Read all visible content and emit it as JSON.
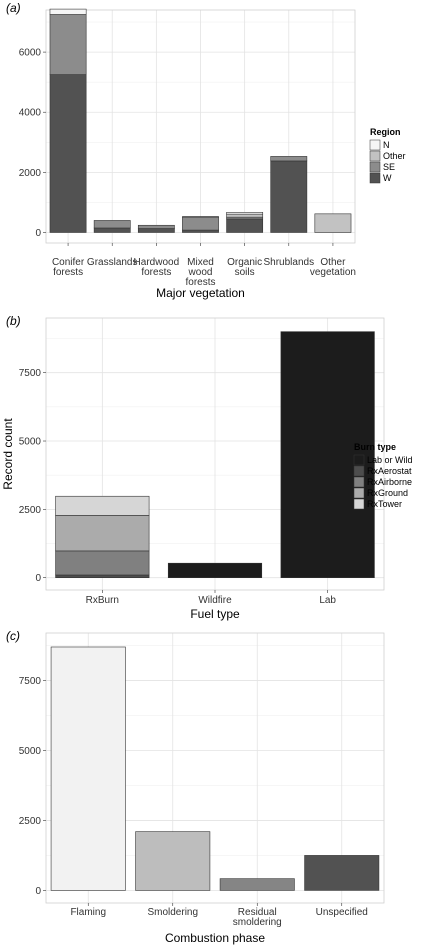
{
  "chart_data": [
    {
      "panel_label": "(a)",
      "type": "bar",
      "stacked": true,
      "xlabel": "Major vegetation",
      "ylabel": "",
      "categories": [
        "Conifer\nforests",
        "Grasslands",
        "Hardwood\nforests",
        "Mixed\nwood\nforests",
        "Organic\nsoils",
        "Shrublands",
        "Other\nvegetation"
      ],
      "ylim": [
        -350,
        7400
      ],
      "yticks": [
        0,
        2000,
        4000,
        6000
      ],
      "grid": true,
      "legend": {
        "title": "Region",
        "placement": "right"
      },
      "series": [
        {
          "name": "W",
          "color": "#525252",
          "values": [
            5250,
            150,
            130,
            80,
            450,
            2380,
            0
          ]
        },
        {
          "name": "SE",
          "color": "#8c8c8c",
          "values": [
            2000,
            250,
            110,
            430,
            60,
            150,
            0
          ]
        },
        {
          "name": "Other",
          "color": "#c2c2c2",
          "values": [
            0,
            0,
            0,
            20,
            100,
            0,
            620
          ]
        },
        {
          "name": "N",
          "color": "#f5f5f5",
          "values": [
            180,
            0,
            0,
            0,
            60,
            0,
            0
          ]
        }
      ]
    },
    {
      "panel_label": "(b)",
      "type": "bar",
      "stacked": true,
      "xlabel": "Fuel type",
      "ylabel": "Record count",
      "categories": [
        "RxBurn",
        "Wildfire",
        "Lab"
      ],
      "ylim": [
        -450,
        9500
      ],
      "yticks": [
        0,
        2500,
        5000,
        7500
      ],
      "grid": true,
      "legend": {
        "title": "Burn type",
        "placement": "right"
      },
      "series": [
        {
          "name": "Lab or Wild",
          "color": "#1c1c1c",
          "values": [
            0,
            530,
            9000
          ]
        },
        {
          "name": "RxAerostat",
          "color": "#4d4d4d",
          "values": [
            100,
            0,
            0
          ]
        },
        {
          "name": "RxAirborne",
          "color": "#808080",
          "values": [
            880,
            0,
            0
          ]
        },
        {
          "name": "RxGround",
          "color": "#ababab",
          "values": [
            1300,
            0,
            0
          ]
        },
        {
          "name": "RxTower",
          "color": "#d6d6d6",
          "values": [
            700,
            0,
            0
          ]
        }
      ]
    },
    {
      "panel_label": "(c)",
      "type": "bar",
      "stacked": false,
      "xlabel": "Combustion phase",
      "ylabel": "",
      "categories": [
        "Flaming",
        "Smoldering",
        "Residual\nsmoldering",
        "Unspecified"
      ],
      "ylim": [
        -450,
        9200
      ],
      "yticks": [
        0,
        2500,
        5000,
        7500
      ],
      "grid": true,
      "values": [
        8700,
        2100,
        420,
        1250
      ],
      "colors": [
        "#f2f2f2",
        "#bdbdbd",
        "#858585",
        "#525252"
      ]
    }
  ]
}
